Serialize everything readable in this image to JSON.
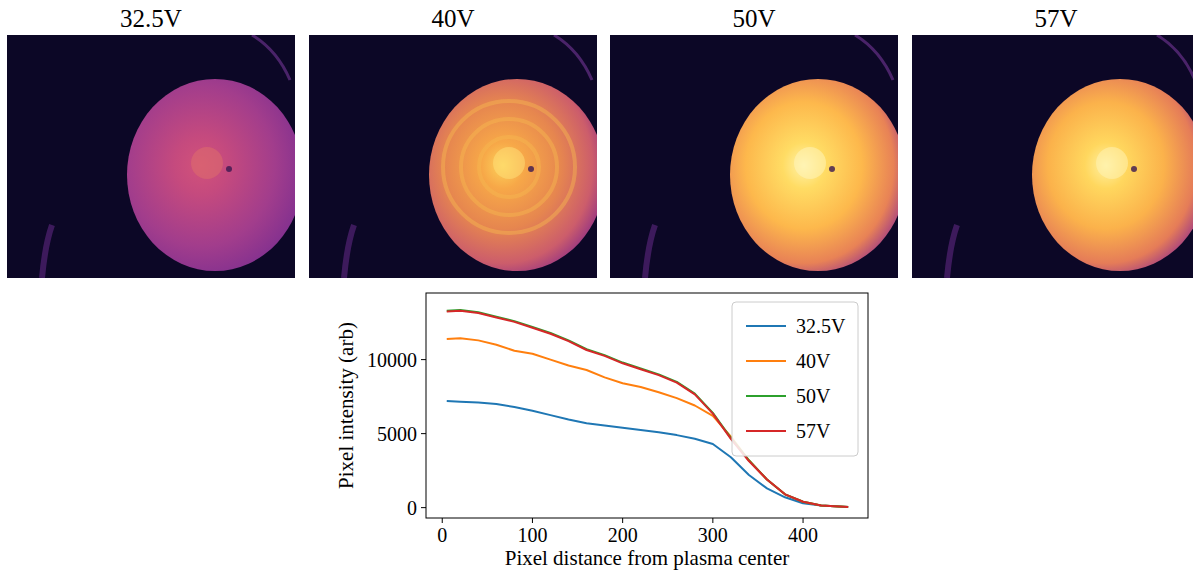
{
  "images": [
    {
      "title": "32.5V"
    },
    {
      "title": "40V"
    },
    {
      "title": "50V"
    },
    {
      "title": "57V"
    }
  ],
  "chart_data": {
    "type": "line",
    "x_label": "Pixel distance from plasma center",
    "y_label": "Pixel intensity (arb)",
    "x": [
      5,
      20,
      40,
      60,
      80,
      100,
      120,
      140,
      160,
      180,
      200,
      220,
      240,
      260,
      280,
      300,
      320,
      340,
      360,
      380,
      400,
      420,
      440,
      450
    ],
    "series": [
      {
        "name": "32.5V",
        "color": "#1f77b4",
        "values": [
          7200,
          7150,
          7100,
          7000,
          6800,
          6550,
          6250,
          5950,
          5700,
          5550,
          5400,
          5250,
          5100,
          4900,
          4650,
          4300,
          3400,
          2200,
          1300,
          700,
          300,
          150,
          80,
          50
        ]
      },
      {
        "name": "40V",
        "color": "#ff7f0e",
        "values": [
          11400,
          11450,
          11300,
          11000,
          10600,
          10400,
          10000,
          9600,
          9300,
          8800,
          8400,
          8150,
          7800,
          7400,
          6900,
          6200,
          4800,
          3200,
          1900,
          900,
          400,
          150,
          80,
          50
        ]
      },
      {
        "name": "50V",
        "color": "#2ca02c",
        "values": [
          13300,
          13350,
          13200,
          12900,
          12600,
          12200,
          11800,
          11300,
          10700,
          10300,
          9800,
          9400,
          9000,
          8500,
          7700,
          6400,
          4700,
          3200,
          1900,
          900,
          400,
          150,
          80,
          50
        ]
      },
      {
        "name": "57V",
        "color": "#d62728",
        "values": [
          13250,
          13300,
          13150,
          12850,
          12550,
          12150,
          11750,
          11250,
          10650,
          10250,
          9750,
          9350,
          8950,
          8450,
          7650,
          6350,
          4650,
          3150,
          1900,
          900,
          400,
          150,
          80,
          50
        ]
      }
    ],
    "xlim": [
      -18,
      472
    ],
    "ylim": [
      -700,
      14500
    ],
    "xticks": [
      0,
      100,
      200,
      300,
      400
    ],
    "yticks": [
      0,
      5000,
      10000
    ],
    "legend": "upper right",
    "grid": false
  }
}
